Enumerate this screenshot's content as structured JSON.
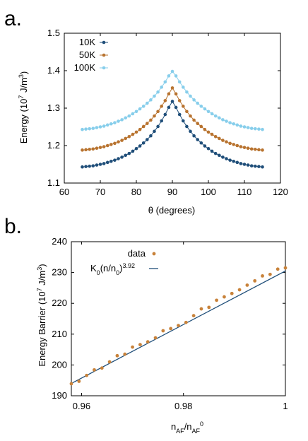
{
  "panel_a": {
    "label": "a."
  },
  "panel_b": {
    "label": "b."
  },
  "chart_data": [
    {
      "type": "scatter",
      "title": "",
      "xlabel": "θ (degrees)",
      "ylabel": "Energy (10⁷ J/m³)",
      "ylabel_main": "Energy (10",
      "ylabel_sup1": "7",
      "ylabel_mid": " J/m",
      "ylabel_sup2": "3",
      "ylabel_end": ")",
      "xlim": [
        60,
        120
      ],
      "ylim": [
        1.1,
        1.5
      ],
      "xticks": [
        60,
        70,
        80,
        90,
        100,
        110,
        120
      ],
      "yticks": [
        1.1,
        1.2,
        1.3,
        1.4,
        1.5
      ],
      "legend_position": "top-left",
      "grid": false,
      "x": [
        65,
        66,
        67,
        68,
        69,
        70,
        71,
        72,
        73,
        74,
        75,
        76,
        77,
        78,
        79,
        80,
        81,
        82,
        83,
        84,
        85,
        86,
        87,
        88,
        89,
        90,
        91,
        92,
        93,
        94,
        95,
        96,
        97,
        98,
        99,
        100,
        101,
        102,
        103,
        104,
        105,
        106,
        107,
        108,
        109,
        110,
        111,
        112,
        113,
        114,
        115
      ],
      "series": [
        {
          "name": "10K",
          "color": "#1f4e79",
          "values": [
            1.143,
            1.144,
            1.145,
            1.146,
            1.148,
            1.15,
            1.152,
            1.155,
            1.158,
            1.161,
            1.165,
            1.169,
            1.174,
            1.179,
            1.185,
            1.192,
            1.199,
            1.207,
            1.216,
            1.226,
            1.238,
            1.251,
            1.266,
            1.283,
            1.302,
            1.318,
            1.302,
            1.283,
            1.266,
            1.251,
            1.238,
            1.226,
            1.216,
            1.207,
            1.199,
            1.192,
            1.185,
            1.179,
            1.174,
            1.169,
            1.165,
            1.161,
            1.158,
            1.155,
            1.152,
            1.15,
            1.148,
            1.146,
            1.145,
            1.144,
            1.143
          ]
        },
        {
          "name": "50K",
          "color": "#b8732f",
          "values": [
            1.188,
            1.189,
            1.19,
            1.191,
            1.193,
            1.195,
            1.197,
            1.2,
            1.203,
            1.206,
            1.21,
            1.214,
            1.219,
            1.224,
            1.23,
            1.236,
            1.243,
            1.251,
            1.259,
            1.268,
            1.279,
            1.291,
            1.305,
            1.32,
            1.338,
            1.354,
            1.338,
            1.32,
            1.305,
            1.291,
            1.279,
            1.268,
            1.259,
            1.251,
            1.243,
            1.236,
            1.23,
            1.224,
            1.219,
            1.214,
            1.21,
            1.206,
            1.203,
            1.2,
            1.197,
            1.195,
            1.193,
            1.191,
            1.19,
            1.189,
            1.188
          ]
        },
        {
          "name": "100K",
          "color": "#87ceeb",
          "values": [
            1.243,
            1.244,
            1.245,
            1.246,
            1.248,
            1.25,
            1.252,
            1.255,
            1.258,
            1.261,
            1.265,
            1.269,
            1.274,
            1.279,
            1.285,
            1.291,
            1.298,
            1.305,
            1.313,
            1.322,
            1.332,
            1.343,
            1.356,
            1.37,
            1.386,
            1.398,
            1.386,
            1.37,
            1.356,
            1.343,
            1.332,
            1.322,
            1.313,
            1.305,
            1.298,
            1.291,
            1.285,
            1.279,
            1.274,
            1.269,
            1.265,
            1.261,
            1.258,
            1.255,
            1.252,
            1.25,
            1.248,
            1.246,
            1.245,
            1.244,
            1.243
          ]
        }
      ]
    },
    {
      "type": "scatter",
      "title": "",
      "xlabel": "nAF/nAF0",
      "xlabel_base": "n",
      "xlabel_sub1": "AF",
      "xlabel_slash": "/n",
      "xlabel_sub2": "AF",
      "xlabel_sup2": "0",
      "ylabel": "Energy Barrier (10⁷ J/m³)",
      "ylabel_main": "Energy Barrier (10",
      "ylabel_sup1": "7",
      "ylabel_mid": " J/m",
      "ylabel_sup2": "3",
      "ylabel_end": ")",
      "xlim": [
        0.958,
        1.0
      ],
      "ylim": [
        190,
        240
      ],
      "xticks": [
        0.96,
        0.98,
        1
      ],
      "xtick_labels": [
        "0.96",
        "0.98",
        "1"
      ],
      "yticks": [
        190,
        200,
        210,
        220,
        230,
        240
      ],
      "legend_position": "top-left",
      "grid": false,
      "series": [
        {
          "name": "data",
          "color": "#c8823a",
          "marker": "dot",
          "x": [
            0.958,
            0.9595,
            0.961,
            0.9625,
            0.964,
            0.9655,
            0.967,
            0.9685,
            0.97,
            0.9715,
            0.973,
            0.9745,
            0.976,
            0.9775,
            0.979,
            0.9805,
            0.982,
            0.9835,
            0.985,
            0.9865,
            0.988,
            0.9895,
            0.991,
            0.9925,
            0.994,
            0.9955,
            0.997,
            0.9985,
            1.0
          ],
          "values": [
            193.9,
            194.7,
            196.6,
            198.4,
            199.0,
            201.0,
            203.0,
            203.5,
            205.8,
            206.6,
            207.5,
            208.8,
            211.1,
            211.8,
            212.8,
            213.8,
            216.0,
            218.2,
            218.7,
            221.0,
            222.1,
            223.2,
            224.4,
            225.9,
            227.3,
            228.9,
            229.4,
            231.1,
            231.5
          ]
        },
        {
          "name": "K0(n/n0)^3.92",
          "color": "#1f4e79",
          "marker": "line",
          "label_base": "K",
          "label_sub1": "0",
          "label_mid": "(n/n",
          "label_sub2": "0",
          "label_end": ")",
          "label_sup": "3.92",
          "x": [
            0.958,
            1.0
          ],
          "values": [
            194.0,
            230.5
          ]
        }
      ]
    }
  ]
}
